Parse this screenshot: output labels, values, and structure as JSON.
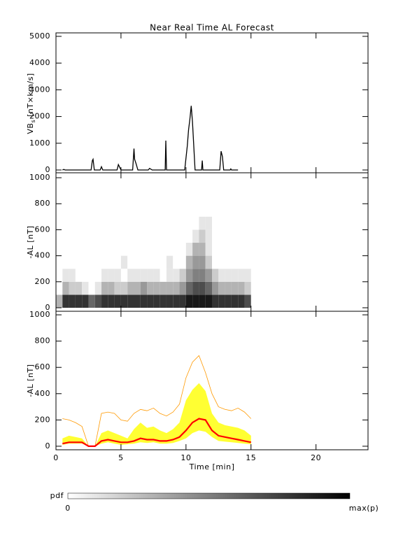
{
  "chart_data": [
    {
      "type": "line",
      "title": "Near Real Time AL Forecast",
      "ylabel": "VB",
      "ylabel_sub": "s",
      "ylabel_unit": "[nT×km/s]",
      "x": [
        0.5,
        0.6,
        0.7,
        2.7,
        2.8,
        2.85,
        2.95,
        3.4,
        3.5,
        3.6,
        4.7,
        4.8,
        4.9,
        5,
        5.9,
        6,
        6.05,
        6.15,
        6.3,
        7.1,
        7.2,
        7.4,
        8.4,
        8.45,
        8.5,
        9.9,
        10.1,
        10.2,
        10.3,
        10.4,
        10.5,
        10.7,
        11.2,
        11.25,
        11.3,
        12.6,
        12.7,
        12.8,
        12.9,
        13.4,
        13.45,
        13.5,
        14
      ],
      "y": [
        0,
        20,
        0,
        0,
        350,
        400,
        0,
        0,
        120,
        0,
        0,
        200,
        100,
        0,
        0,
        800,
        400,
        250,
        0,
        0,
        60,
        0,
        0,
        1100,
        0,
        0,
        900,
        1500,
        1900,
        2400,
        1800,
        0,
        0,
        350,
        0,
        0,
        700,
        500,
        0,
        0,
        40,
        0,
        0
      ],
      "color": "#000000",
      "xlim": [
        0,
        24
      ],
      "xticks": [
        0,
        5,
        10,
        15,
        20
      ],
      "xtick_labels": false,
      "ylim": [
        -105,
        5130
      ],
      "yticks": [
        0,
        1000,
        2000,
        3000,
        4000,
        5000
      ]
    },
    {
      "type": "heatmap",
      "ylabel": "-AL [nT]",
      "x_bins": [
        0,
        0.5,
        1,
        1.5,
        2,
        2.5,
        3,
        3.5,
        4,
        4.5,
        5,
        5.5,
        6,
        6.5,
        7,
        7.5,
        8,
        8.5,
        9,
        9.5,
        10,
        10.5,
        11,
        11.5,
        12,
        12.5,
        13,
        13.5,
        14,
        14.5,
        15
      ],
      "y_bins": [
        0,
        100,
        200,
        300,
        400,
        500,
        600,
        700
      ],
      "z": [
        [
          0.3,
          0.8,
          0.8,
          0.8,
          0.8,
          0.6,
          0.7,
          0.8,
          0.8,
          0.8,
          0.8,
          0.8,
          0.8,
          0.8,
          0.8,
          0.8,
          0.8,
          0.8,
          0.8,
          0.8,
          0.9,
          0.9,
          0.9,
          0.9,
          0.8,
          0.8,
          0.8,
          0.8,
          0.8,
          0.7
        ],
        [
          0,
          0.3,
          0.2,
          0.2,
          0.1,
          0,
          0.1,
          0.3,
          0.3,
          0.2,
          0.2,
          0.3,
          0.3,
          0.4,
          0.3,
          0.3,
          0.3,
          0.3,
          0.3,
          0.4,
          0.6,
          0.7,
          0.7,
          0.6,
          0.4,
          0.3,
          0.3,
          0.3,
          0.3,
          0.2
        ],
        [
          0,
          0.1,
          0.1,
          0,
          0,
          0,
          0,
          0.1,
          0.1,
          0.1,
          0,
          0.1,
          0.1,
          0.1,
          0.1,
          0.1,
          0,
          0.1,
          0.1,
          0.2,
          0.4,
          0.5,
          0.5,
          0.4,
          0.2,
          0.1,
          0.1,
          0.1,
          0.1,
          0.1
        ],
        [
          0,
          0,
          0,
          0,
          0,
          0,
          0,
          0,
          0,
          0,
          0.1,
          0,
          0,
          0,
          0,
          0,
          0,
          0.1,
          0,
          0,
          0.3,
          0.4,
          0.4,
          0.2,
          0,
          0,
          0,
          0,
          0,
          0
        ],
        [
          0,
          0,
          0,
          0,
          0,
          0,
          0,
          0,
          0,
          0,
          0,
          0,
          0,
          0,
          0,
          0,
          0,
          0,
          0,
          0,
          0.1,
          0.3,
          0.3,
          0.1,
          0,
          0,
          0,
          0,
          0,
          0
        ],
        [
          0,
          0,
          0,
          0,
          0,
          0,
          0,
          0,
          0,
          0,
          0,
          0,
          0,
          0,
          0,
          0,
          0,
          0,
          0,
          0,
          0,
          0.1,
          0.2,
          0.1,
          0,
          0,
          0,
          0,
          0,
          0
        ],
        [
          0,
          0,
          0,
          0,
          0,
          0,
          0,
          0,
          0,
          0,
          0,
          0,
          0,
          0,
          0,
          0,
          0,
          0,
          0,
          0,
          0,
          0,
          0.1,
          0.1,
          0,
          0,
          0,
          0,
          0,
          0
        ]
      ],
      "xlim": [
        0,
        24
      ],
      "xticks": [
        0,
        5,
        10,
        15,
        20
      ],
      "xtick_labels": false,
      "ylim": [
        -27,
        1038
      ],
      "yticks": [
        0,
        200,
        400,
        600,
        800,
        1000
      ]
    },
    {
      "type": "ensemble",
      "ylabel": "-AL [nT]",
      "xlabel": "Time [min]",
      "x": [
        0.5,
        1,
        1.5,
        2,
        2.5,
        3,
        3.5,
        4,
        4.5,
        5,
        5.5,
        6,
        6.5,
        7,
        7.5,
        8,
        8.5,
        9,
        9.5,
        10,
        10.5,
        11,
        11.5,
        12,
        12.5,
        13,
        13.5,
        14,
        14.5,
        15
      ],
      "median": [
        20,
        30,
        30,
        30,
        0,
        0,
        40,
        50,
        40,
        30,
        30,
        40,
        60,
        50,
        50,
        40,
        40,
        50,
        70,
        120,
        180,
        210,
        200,
        120,
        80,
        70,
        60,
        50,
        40,
        30
      ],
      "band_low": [
        10,
        20,
        20,
        20,
        0,
        0,
        20,
        30,
        20,
        10,
        15,
        20,
        30,
        25,
        30,
        20,
        20,
        25,
        40,
        60,
        100,
        120,
        110,
        70,
        40,
        35,
        30,
        25,
        20,
        15
      ],
      "band_high": [
        60,
        80,
        70,
        60,
        0,
        0,
        100,
        120,
        100,
        80,
        60,
        130,
        180,
        140,
        150,
        120,
        100,
        130,
        180,
        350,
        430,
        480,
        420,
        250,
        180,
        160,
        150,
        140,
        120,
        80
      ],
      "max": [
        210,
        200,
        180,
        150,
        0,
        0,
        250,
        260,
        250,
        200,
        190,
        250,
        280,
        270,
        290,
        250,
        230,
        260,
        320,
        520,
        640,
        690,
        560,
        400,
        300,
        280,
        270,
        290,
        260,
        210
      ],
      "median_color": "#ff0000",
      "band_color": "#ffff33",
      "max_color": "#ff9900",
      "xlim": [
        0,
        24
      ],
      "xticks": [
        0,
        5,
        10,
        15,
        20
      ],
      "xtick_labels": true,
      "ylim": [
        -27,
        1027
      ],
      "yticks": [
        0,
        200,
        400,
        600,
        800,
        1000
      ]
    },
    {
      "type": "colorbar",
      "label": "pdf",
      "min_label": "0",
      "max_label": "max(p)",
      "colors": [
        "#ffffff",
        "#000000"
      ]
    }
  ]
}
